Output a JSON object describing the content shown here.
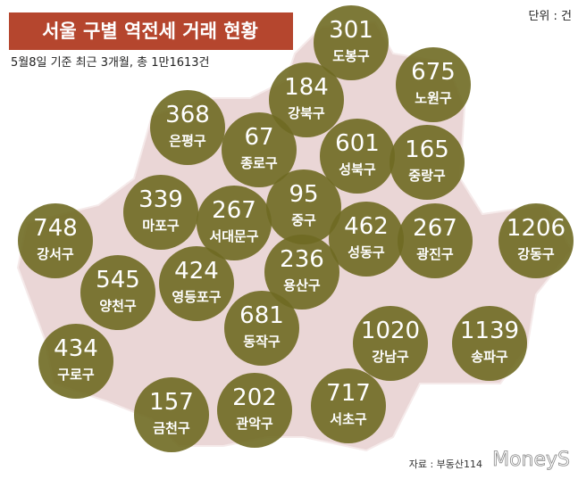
{
  "header": {
    "title": "서울 구별 역전세 거래 현황",
    "subtitle": "5월8일 기준 최근 3개월, 총 1만1613건",
    "unit": "단위 : 건"
  },
  "districts": [
    {
      "name": "도봉구",
      "value": 301
    },
    {
      "name": "노원구",
      "value": 675
    },
    {
      "name": "강북구",
      "value": 184
    },
    {
      "name": "은평구",
      "value": 368
    },
    {
      "name": "종로구",
      "value": 67
    },
    {
      "name": "성북구",
      "value": 601
    },
    {
      "name": "중랑구",
      "value": 165
    },
    {
      "name": "마포구",
      "value": 339
    },
    {
      "name": "서대문구",
      "value": 267
    },
    {
      "name": "중구",
      "value": 95
    },
    {
      "name": "성동구",
      "value": 462
    },
    {
      "name": "광진구",
      "value": 267
    },
    {
      "name": "강동구",
      "value": 1206
    },
    {
      "name": "강서구",
      "value": 748
    },
    {
      "name": "양천구",
      "value": 545
    },
    {
      "name": "영등포구",
      "value": 424
    },
    {
      "name": "용산구",
      "value": 236
    },
    {
      "name": "동작구",
      "value": 681
    },
    {
      "name": "강남구",
      "value": 1020
    },
    {
      "name": "송파구",
      "value": 1139
    },
    {
      "name": "구로구",
      "value": 434
    },
    {
      "name": "금천구",
      "value": 157
    },
    {
      "name": "관악구",
      "value": 202
    },
    {
      "name": "서초구",
      "value": 717
    }
  ],
  "footer": {
    "source": "자료 : 부동산114",
    "watermark": "MoneyS"
  }
}
